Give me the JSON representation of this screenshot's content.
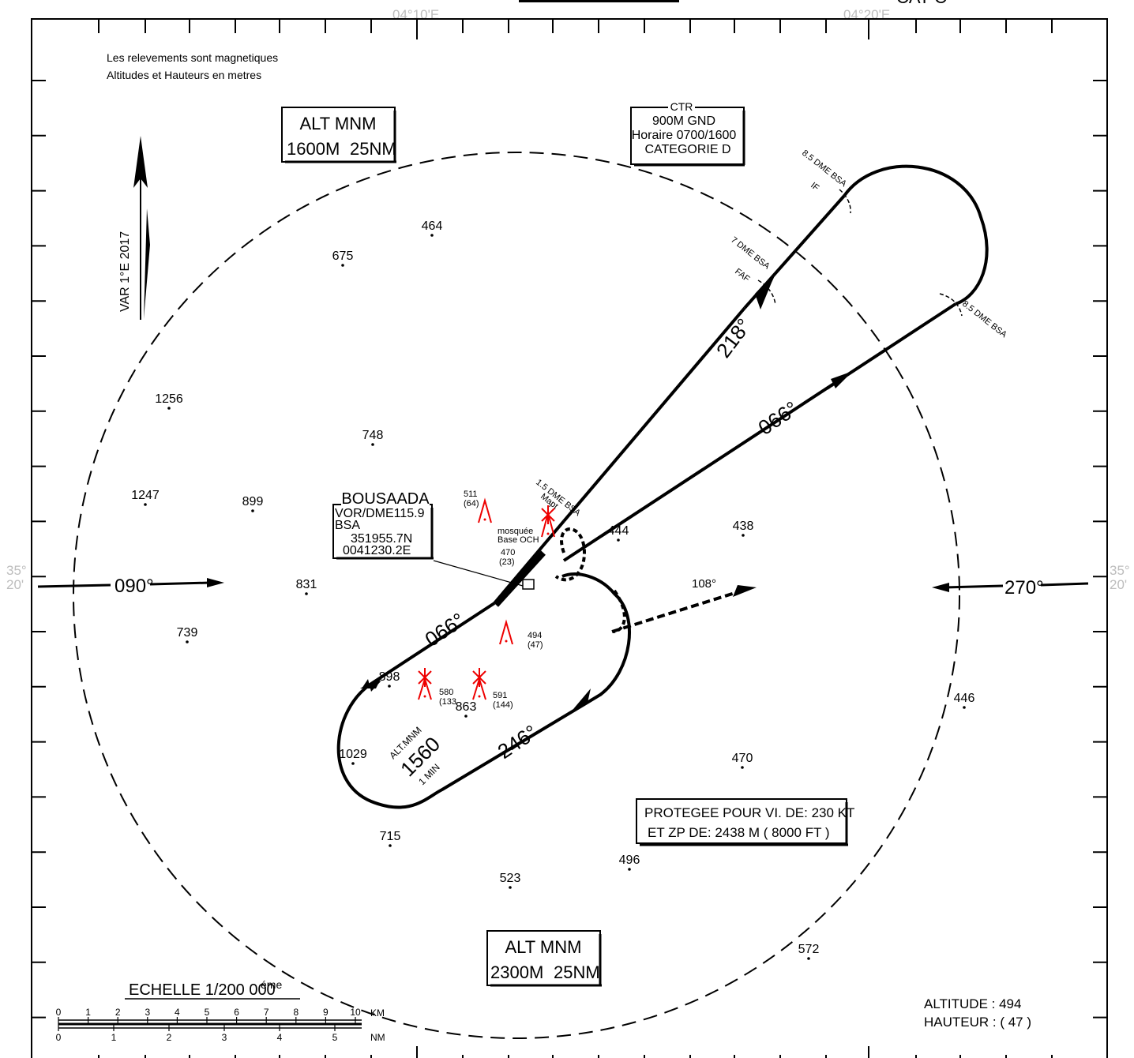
{
  "header": {
    "lon_left": "04°10'E",
    "lon_right": "04°20'E",
    "cat": "CAT C"
  },
  "lat": {
    "deg": "35°",
    "min": "20'"
  },
  "notes": {
    "line1": "Les relevements sont magnetiques",
    "line2": "Altitudes et Hauteurs en metres"
  },
  "msa_top": {
    "title": "ALT MNM",
    "alt": "1600M",
    "radius": "25NM"
  },
  "msa_bottom": {
    "title": "ALT MNM",
    "alt": "2300M",
    "radius": "25NM"
  },
  "ctr": {
    "label": "CTR",
    "line1": "900M GND",
    "line2": "Horaire 0700/1600",
    "line3": "CATEGORIE D"
  },
  "variation": "VAR 1°E 2017",
  "vor": {
    "name": "BOUSAADA",
    "line1": "VOR/DME115.9",
    "line2": "BSA",
    "lat": "351955.7N",
    "lon": "0041230.2E"
  },
  "fixes": {
    "if_dme": "8.5 DME BSA",
    "if_name": "IF",
    "faf_dme": "7 DME BSA",
    "faf_name": "FAF",
    "turn_dme": "8.5 DME BSA",
    "mapt_dme": "1.5 DME BSA",
    "mapt_name": "Mapt"
  },
  "tracks": {
    "inbound": "218°",
    "outbound": "066°",
    "holding_in": "066°",
    "holding_out": "246°",
    "west_entry": "090°",
    "east_entry": "270°",
    "missed": "108°"
  },
  "holding": {
    "title": "ALT.MNM",
    "alt": "1560",
    "time": "1 MIN"
  },
  "protection": {
    "line1": "PROTEGEE POUR  VI. DE: 230   KT",
    "line2": "ET ZP  DE: 2438 M  (  8000 FT )"
  },
  "aerodrome": {
    "altitude": "ALTITUDE :  494",
    "height": "HAUTEUR : ( 47 )"
  },
  "obstacles": {
    "o511": {
      "elev": "511",
      "hgt": "(64)"
    },
    "o470": {
      "name1": "mosquée",
      "name2": "Base OCH",
      "elev": "470",
      "hgt": "(23)"
    },
    "o494": {
      "elev": "494",
      "hgt": "(47)"
    },
    "o580": {
      "elev": "580",
      "hgt": "(133"
    },
    "o591": {
      "elev": "591",
      "hgt": "(144)"
    }
  },
  "spots": [
    "464",
    "675",
    "1256",
    "748",
    "1247",
    "899",
    "831",
    "739",
    "444",
    "438",
    "898",
    "863",
    "1029",
    "715",
    "523",
    "496",
    "470",
    "446",
    "572"
  ],
  "scale": {
    "title": "ECHELLE  1/200 000",
    "sup": "éme",
    "km": [
      "0",
      "1",
      "2",
      "3",
      "4",
      "5",
      "6",
      "7",
      "8",
      "9",
      "10"
    ],
    "km_unit": "KM",
    "nm": [
      "0",
      "1",
      "2",
      "3",
      "4",
      "5"
    ],
    "nm_unit": "NM"
  }
}
